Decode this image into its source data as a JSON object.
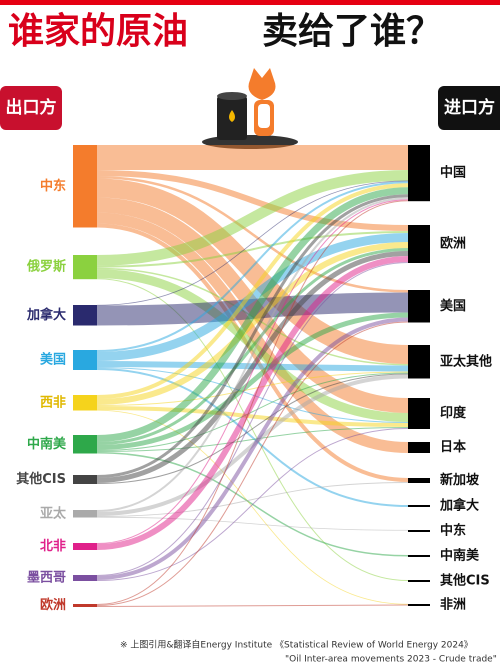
{
  "chart_data": {
    "type": "sankey",
    "title": "谁家的原油",
    "title2": "卖给了谁？",
    "source_header": "出口方",
    "target_header": "进口方",
    "sources": [
      {
        "name": "中东",
        "color": "#f47c2c"
      },
      {
        "name": "俄罗斯",
        "color": "#8bd13f"
      },
      {
        "name": "加拿大",
        "color": "#2a2a6e"
      },
      {
        "name": "美国",
        "color": "#29a8e0"
      },
      {
        "name": "西非",
        "color": "#f5d31c"
      },
      {
        "name": "中南美",
        "color": "#2ea84a"
      },
      {
        "name": "其他CIS",
        "color": "#444444"
      },
      {
        "name": "亚太",
        "color": "#aaaaaa"
      },
      {
        "name": "北非",
        "color": "#e0208a"
      },
      {
        "name": "墨西哥",
        "color": "#7b4fa0"
      },
      {
        "name": "欧洲",
        "color": "#c0392b"
      }
    ],
    "targets": [
      "中国",
      "欧洲",
      "美国",
      "亚太其他",
      "印度",
      "日本",
      "新加坡",
      "加拿大",
      "中东",
      "中南美",
      "其他CIS",
      "非洲"
    ],
    "links": [
      {
        "source": "中东",
        "target": "中国",
        "value": 250
      },
      {
        "source": "中东",
        "target": "欧洲",
        "value": 60
      },
      {
        "source": "中东",
        "target": "美国",
        "value": 25
      },
      {
        "source": "中东",
        "target": "亚太其他",
        "value": 190
      },
      {
        "source": "中东",
        "target": "印度",
        "value": 150
      },
      {
        "source": "中东",
        "target": "日本",
        "value": 110
      },
      {
        "source": "中东",
        "target": "新加坡",
        "value": 40
      },
      {
        "source": "俄罗斯",
        "target": "中国",
        "value": 107
      },
      {
        "source": "俄罗斯",
        "target": "欧洲",
        "value": 20
      },
      {
        "source": "俄罗斯",
        "target": "亚太其他",
        "value": 15
      },
      {
        "source": "俄罗斯",
        "target": "印度",
        "value": 90
      },
      {
        "source": "俄罗斯",
        "target": "其他CIS",
        "value": 10
      },
      {
        "source": "加拿大",
        "target": "中国",
        "value": 5
      },
      {
        "source": "加拿大",
        "target": "美国",
        "value": 200
      },
      {
        "source": "美国",
        "target": "中国",
        "value": 20
      },
      {
        "source": "美国",
        "target": "欧洲",
        "value": 90
      },
      {
        "source": "美国",
        "target": "亚太其他",
        "value": 60
      },
      {
        "source": "美国",
        "target": "印度",
        "value": 10
      },
      {
        "source": "美国",
        "target": "加拿大",
        "value": 20
      },
      {
        "source": "西非",
        "target": "中国",
        "value": 40
      },
      {
        "source": "西非",
        "target": "欧洲",
        "value": 60
      },
      {
        "source": "西非",
        "target": "亚太其他",
        "value": 10
      },
      {
        "source": "西非",
        "target": "印度",
        "value": 40
      },
      {
        "source": "西非",
        "target": "非洲",
        "value": 5
      },
      {
        "source": "中南美",
        "target": "中国",
        "value": 70
      },
      {
        "source": "中南美",
        "target": "欧洲",
        "value": 30
      },
      {
        "source": "中南美",
        "target": "美国",
        "value": 50
      },
      {
        "source": "中南美",
        "target": "亚太其他",
        "value": 10
      },
      {
        "source": "中南美",
        "target": "印度",
        "value": 10
      },
      {
        "source": "中南美",
        "target": "中南美",
        "value": 15
      },
      {
        "source": "其他CIS",
        "target": "中国",
        "value": 30
      },
      {
        "source": "其他CIS",
        "target": "欧洲",
        "value": 50
      },
      {
        "source": "其他CIS",
        "target": "亚太其他",
        "value": 10
      },
      {
        "source": "亚太",
        "target": "中国",
        "value": 20
      },
      {
        "source": "亚太",
        "target": "亚太其他",
        "value": 40
      },
      {
        "source": "亚太",
        "target": "新加坡",
        "value": 10
      },
      {
        "source": "亚太",
        "target": "中东",
        "value": 5
      },
      {
        "source": "北非",
        "target": "中国",
        "value": 10
      },
      {
        "source": "北非",
        "target": "欧洲",
        "value": 60
      },
      {
        "source": "墨西哥",
        "target": "欧洲",
        "value": 10
      },
      {
        "source": "墨西哥",
        "target": "美国",
        "value": 40
      },
      {
        "source": "墨西哥",
        "target": "印度",
        "value": 10
      },
      {
        "source": "欧洲",
        "target": "中国",
        "value": 10
      },
      {
        "source": "欧洲",
        "target": "美国",
        "value": 10
      },
      {
        "source": "欧洲",
        "target": "非洲",
        "value": 10
      }
    ],
    "notes": [
      "※ 上图引用&翻译自Energy Institute 《Statistical Review of World Energy 2024》",
      "\"Oil Inter-area movements 2023 - Crude trade\""
    ]
  }
}
